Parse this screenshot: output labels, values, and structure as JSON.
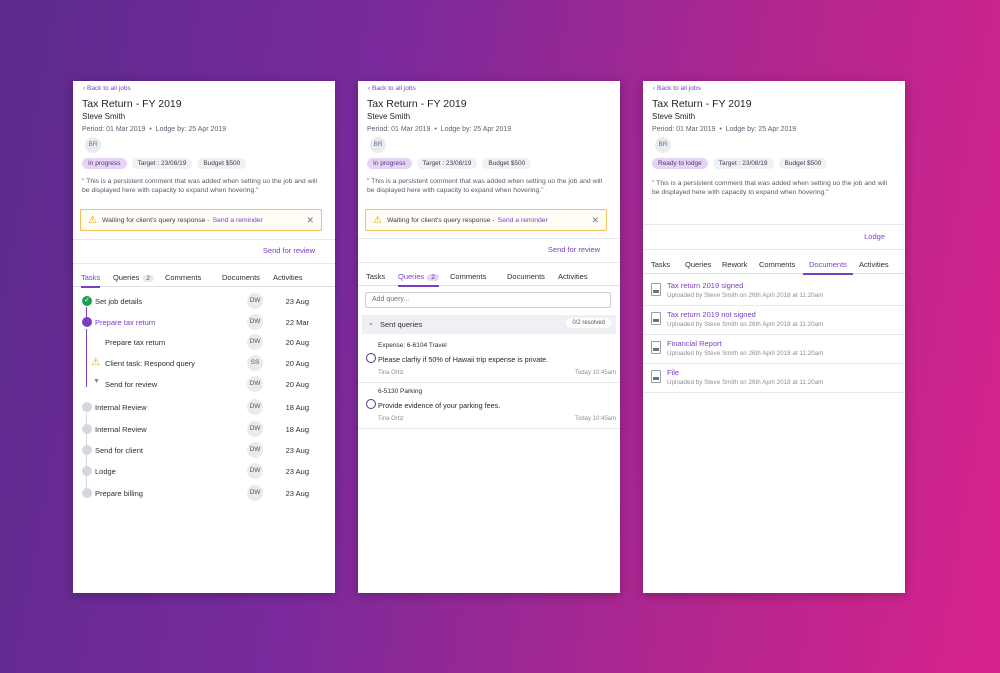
{
  "job": {
    "back_label": "Back to all jobs",
    "title": "Tax Return - FY 2019",
    "client": "Steve Smith",
    "period": "Period: 01 Mar 2019",
    "lodge_by": "Lodge by: 25 Apr 2019",
    "avatar_initials": "BR",
    "target": "Target : 23/08/19",
    "budget": "Budget $500",
    "comment": "\" This is a persistent comment that was added when setting uo the job and will be displayed here with capacity to expand when hovering.\""
  },
  "panels": [
    {
      "status": "In progress",
      "alert": {
        "text": "Waiting for client's query response -",
        "link": "Send a reminder"
      },
      "action": "Send for review",
      "tabs": [
        {
          "label": "Tasks"
        },
        {
          "label": "Queries",
          "count": "2"
        },
        {
          "label": "Comments"
        },
        {
          "label": "Documents"
        },
        {
          "label": "Activities"
        }
      ],
      "tasks": [
        {
          "label": "Set job details",
          "initials": "DW",
          "date": "23 Aug"
        },
        {
          "label": "Prepare tax return",
          "initials": "DW",
          "date": "22 Mar"
        },
        {
          "label": "Prepare tax return",
          "initials": "DW",
          "date": "20 Aug"
        },
        {
          "label": "Client task: Respond query",
          "initials": "SS",
          "date": "20 Aug"
        },
        {
          "label": "Send for review",
          "initials": "DW",
          "date": "20 Aug"
        },
        {
          "label": "Internal Review",
          "initials": "DW",
          "date": "18 Aug"
        },
        {
          "label": "Internal Review",
          "initials": "DW",
          "date": "18 Aug"
        },
        {
          "label": "Send for client",
          "initials": "DW",
          "date": "23 Aug"
        },
        {
          "label": "Lodge",
          "initials": "DW",
          "date": "23 Aug"
        },
        {
          "label": "Prepare billing",
          "initials": "DW",
          "date": "23 Aug"
        }
      ]
    },
    {
      "status": "In progress",
      "alert": {
        "text": "Waiting for client's query response -",
        "link": "Send a reminder"
      },
      "action": "Send for review",
      "tabs": [
        {
          "label": "Tasks"
        },
        {
          "label": "Queries",
          "count": "2"
        },
        {
          "label": "Comments"
        },
        {
          "label": "Documents"
        },
        {
          "label": "Activities"
        }
      ],
      "query_placeholder": "Add query...",
      "group": {
        "title": "Sent queries",
        "resolved": "0/2 resolved"
      },
      "queries": [
        {
          "code": "Expense: 6-6104 Travel",
          "text": "Please clarfiy if 50% of Hawaii trip expense is private.",
          "who": "Tina Ortiz",
          "when": "Today 10:45am"
        },
        {
          "code": "6-5130 Parking",
          "text": "Provide evidence of your parking fees.",
          "who": "Tina Ortiz",
          "when": "Today 10:45am"
        }
      ]
    },
    {
      "status": "Ready to lodge",
      "action": "Lodge",
      "tabs": [
        {
          "label": "Tasks"
        },
        {
          "label": "Queries"
        },
        {
          "label": "Rework"
        },
        {
          "label": "Comments"
        },
        {
          "label": "Documents"
        },
        {
          "label": "Activities"
        }
      ],
      "documents": [
        {
          "name": "Tax return 2019 signed",
          "meta": "Uploaded by Steve Smith on 26th April 2018 at 11:20am"
        },
        {
          "name": "Tax return 2019 not signed",
          "meta": "Uploaded by Steve Smith on 26th April 2018 at 11:20am"
        },
        {
          "name": "Financial Report",
          "meta": "Uploaded by Steve Smith on 26th April 2018 at 11:20am"
        },
        {
          "name": "File",
          "meta": "Uploaded by Steve Smith on 26th April 2018 at 11:20am"
        }
      ]
    }
  ],
  "colors": {
    "accent": "#7b3fc4",
    "done": "#1f9d55",
    "warning": "#e0a100"
  }
}
